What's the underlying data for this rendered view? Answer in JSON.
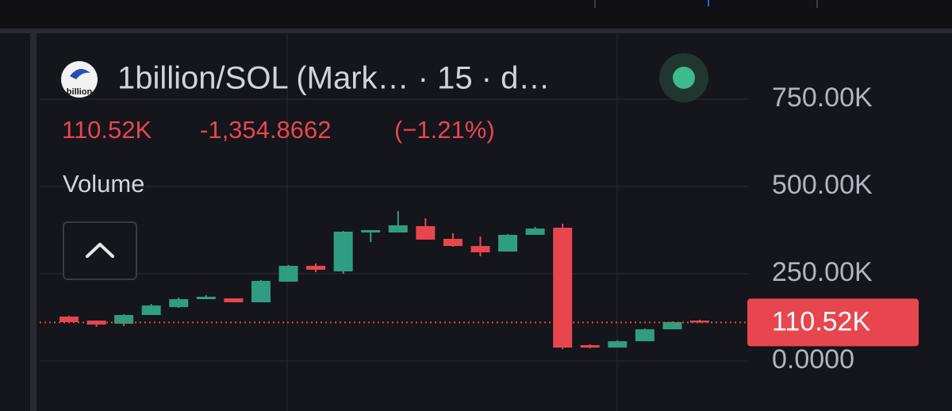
{
  "chart_data": {
    "type": "candlestick",
    "title": "1billion/SOL (Mark… · 15 · d…",
    "logo_text": "billion",
    "legend": {
      "last": "110.52K",
      "change": "-1,354.8662",
      "change_pct": "(−1.21%)"
    },
    "indicator": "Volume",
    "open": [
      127300,
      115900,
      106800,
      131800,
      154500,
      177300,
      179500,
      168200,
      227300,
      272700,
      256800,
      368200,
      368200,
      386400,
      350000,
      329500,
      313600,
      361400,
      381800,
      45500,
      38600,
      56800,
      90900,
      115900
    ],
    "high": [
      129500,
      116500,
      134100,
      163600,
      181800,
      188600,
      179500,
      231800,
      275000,
      279500,
      372700,
      375000,
      429500,
      409100,
      365900,
      356800,
      363600,
      384100,
      393200,
      47700,
      59100,
      93200,
      113600,
      118200
    ],
    "low": [
      109100,
      97700,
      100000,
      131800,
      152300,
      177300,
      168200,
      168200,
      227300,
      254500,
      250000,
      340900,
      368200,
      347700,
      327300,
      300000,
      313600,
      361400,
      34100,
      36400,
      38600,
      56800,
      90900,
      109100
    ],
    "close": [
      111400,
      104500,
      131800,
      159100,
      177300,
      184100,
      168200,
      229500,
      272700,
      261400,
      370500,
      375000,
      388600,
      347700,
      329500,
      311400,
      361400,
      379500,
      38600,
      38600,
      56800,
      90900,
      111400,
      110520
    ],
    "up_color": "#2f9e80",
    "down_color": "#e8464f",
    "ylim": [
      -143000,
      943000
    ],
    "yticks": [
      {
        "value": 0,
        "label": "0.0000"
      },
      {
        "value": 250000,
        "label": "250.00K"
      },
      {
        "value": 500000,
        "label": "500.00K"
      },
      {
        "value": 750000,
        "label": "750.00K"
      }
    ],
    "grid": true,
    "price_line": {
      "value": 110520,
      "label": "110.52K",
      "color": "#e8464f"
    }
  }
}
